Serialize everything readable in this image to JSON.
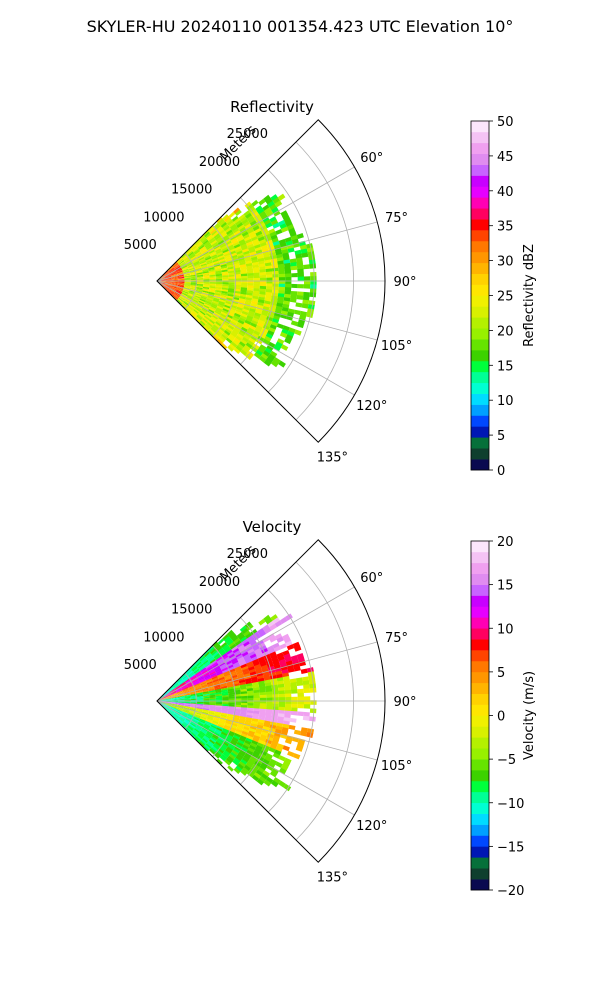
{
  "figure": {
    "suptitle": "SKYLER-HU  20240110  001354.423 UTC Elevation 10°"
  },
  "chart_data": [
    {
      "type": "heatmap",
      "title": "Reflectivity",
      "projection": "polar-sector",
      "radial_label": "Meters",
      "radial_ticks": [
        5000,
        10000,
        15000,
        20000,
        25000
      ],
      "radial_tick_labels": [
        "5000",
        "10000",
        "15000",
        "20000",
        "25000"
      ],
      "rlim": [
        0,
        29000
      ],
      "azimuth_range_deg": [
        45,
        135
      ],
      "angle_ticks": [
        60,
        75,
        90,
        105,
        120,
        135
      ],
      "angle_tick_labels": [
        "60°",
        "75°",
        "90°",
        "105°",
        "120°",
        "135°"
      ],
      "grid": true,
      "data_max_range_m": 20000,
      "colorbar": {
        "label": "Reflectivity dBZ",
        "range": [
          0,
          50
        ],
        "ticks": [
          0,
          5,
          10,
          15,
          20,
          25,
          30,
          35,
          40,
          45,
          50
        ],
        "tick_labels": [
          "0",
          "5",
          "10",
          "15",
          "20",
          "25",
          "30",
          "35",
          "40",
          "45",
          "50"
        ],
        "colors": [
          "#0a0a50",
          "#0f3f2e",
          "#06703a",
          "#0017b4",
          "#0048ff",
          "#00a0ff",
          "#00dcff",
          "#00ffd2",
          "#00ff96",
          "#00ff3c",
          "#3cd200",
          "#66e400",
          "#98f000",
          "#b4f000",
          "#d8f000",
          "#f0f000",
          "#ffe600",
          "#ffd200",
          "#ffb400",
          "#ff9600",
          "#ff7800",
          "#ff4400",
          "#ff0000",
          "#ff0060",
          "#ff00b4",
          "#e600ff",
          "#c800ff",
          "#c864ff",
          "#e08cf0",
          "#f0a0f0",
          "#f5c3f5",
          "#fce6fc"
        ]
      },
      "field_summary": {
        "dominant_values": [
          18,
          26
        ],
        "near_range_values": [
          30,
          36
        ],
        "edge_values": [
          13,
          16
        ]
      }
    },
    {
      "type": "heatmap",
      "title": "Velocity",
      "projection": "polar-sector",
      "radial_label": "Meters",
      "radial_ticks": [
        5000,
        10000,
        15000,
        20000,
        25000
      ],
      "radial_tick_labels": [
        "5000",
        "10000",
        "15000",
        "20000",
        "25000"
      ],
      "rlim": [
        0,
        29000
      ],
      "azimuth_range_deg": [
        45,
        135
      ],
      "angle_ticks": [
        60,
        75,
        90,
        105,
        120,
        135
      ],
      "angle_tick_labels": [
        "60°",
        "75°",
        "90°",
        "105°",
        "120°",
        "135°"
      ],
      "grid": true,
      "data_max_range_m": 20000,
      "colorbar": {
        "label": "Velocity (m/s)",
        "range": [
          -20,
          20
        ],
        "ticks": [
          -20,
          -15,
          -10,
          -5,
          0,
          5,
          10,
          15,
          20
        ],
        "tick_labels": [
          "−20",
          "−15",
          "−10",
          "−5",
          "0",
          "5",
          "10",
          "15",
          "20"
        ],
        "colors": [
          "#0a0a50",
          "#0f3f2e",
          "#06703a",
          "#0017b4",
          "#0048ff",
          "#00a0ff",
          "#00dcff",
          "#00ffd2",
          "#00ff96",
          "#00ff3c",
          "#3cd200",
          "#66e400",
          "#98f000",
          "#b4f000",
          "#d8f000",
          "#f0f000",
          "#ffe600",
          "#ffd200",
          "#ffb400",
          "#ff9600",
          "#ff7800",
          "#ff4400",
          "#ff0000",
          "#ff0060",
          "#ff00b4",
          "#e600ff",
          "#c800ff",
          "#c864ff",
          "#e08cf0",
          "#f0a0f0",
          "#f5c3f5",
          "#fce6fc"
        ]
      },
      "field_summary": {
        "bands_by_azimuth": [
          {
            "azimuth_deg": [
              55,
              68
            ],
            "value_range": [
              8,
              18
            ]
          },
          {
            "azimuth_deg": [
              68,
              80
            ],
            "value_range": [
              2,
              10
            ]
          },
          {
            "azimuth_deg": [
              80,
              95
            ],
            "value_range": [
              -12,
              0
            ]
          },
          {
            "azimuth_deg": [
              95,
              100
            ],
            "value_range": [
              14,
              18
            ]
          },
          {
            "azimuth_deg": [
              100,
              112
            ],
            "value_range": [
              -6,
              6
            ]
          },
          {
            "azimuth_deg": [
              112,
              125
            ],
            "value_range": [
              -12,
              -4
            ]
          }
        ]
      }
    }
  ]
}
